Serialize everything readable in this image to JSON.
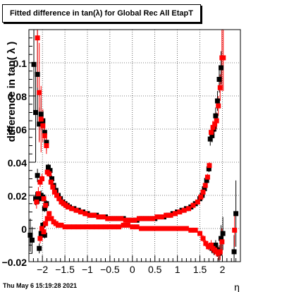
{
  "chart_data": {
    "type": "scatter",
    "title": "Fitted difference in tan(λ) for Global Rec All EtapT",
    "xlabel": "η",
    "ylabel": "difference in tan( λ )",
    "xlim": [
      -2.3,
      2.4
    ],
    "ylim": [
      -0.02,
      0.12
    ],
    "x_ticks": [
      "−2",
      "−1.5",
      "−1",
      "−0.5",
      "0",
      "0.5",
      "1",
      "1.5",
      "2"
    ],
    "x_tick_values": [
      -2,
      -1.5,
      -1,
      -0.5,
      0,
      0.5,
      1,
      1.5,
      2
    ],
    "y_ticks": [
      "−0.02",
      "0",
      "0.02",
      "0.04",
      "0.06",
      "0.08",
      "0.1"
    ],
    "y_tick_values": [
      -0.02,
      0,
      0.02,
      0.04,
      0.06,
      0.08,
      0.1
    ],
    "grid": true,
    "legend": "none",
    "colors": {
      "series_a": "#000000",
      "series_b": "#ff0000"
    },
    "series": [
      {
        "color": "#000000",
        "marker": "square",
        "points": [
          [
            -2.27,
            -0.004,
            0.01
          ],
          [
            -2.23,
            -0.007,
            0.008
          ],
          [
            -2.19,
            0.099,
            0.03
          ],
          [
            -2.15,
            0.07,
            0.03
          ],
          [
            -2.11,
            0.093,
            0.03
          ],
          [
            -2.07,
            0.063,
            0.01
          ],
          [
            -2.03,
            0.069,
            0.01
          ],
          [
            -1.99,
            0.065,
            0.006
          ],
          [
            -1.95,
            0.058,
            0.006
          ],
          [
            -1.91,
            0.052,
            0.005
          ],
          [
            -2.15,
            0.018,
            0.004
          ],
          [
            -2.11,
            0.032,
            0.004
          ],
          [
            -2.07,
            0.018,
            0.003
          ],
          [
            -2.03,
            0.02,
            0.003
          ],
          [
            -1.99,
            0.019,
            0.002
          ],
          [
            -1.95,
            0.012,
            0.002
          ],
          [
            -1.91,
            0.015,
            0.002
          ],
          [
            -1.87,
            0.037,
            0.002
          ],
          [
            -1.83,
            0.035,
            0.002
          ],
          [
            -1.79,
            0.03,
            0.002
          ],
          [
            -1.75,
            0.026,
            0.001
          ],
          [
            -1.7,
            0.023,
            0.001
          ],
          [
            -1.65,
            0.02,
            0.001
          ],
          [
            -1.6,
            0.018,
            0.001
          ],
          [
            -1.55,
            0.016,
            0.001
          ],
          [
            -1.5,
            0.015,
            0.001
          ],
          [
            -1.45,
            0.014,
            0.001
          ],
          [
            -1.4,
            0.013,
            0.001
          ],
          [
            -1.3,
            0.012,
            0.001
          ],
          [
            -1.2,
            0.011,
            0.001
          ],
          [
            -1.1,
            0.01,
            0.001
          ],
          [
            -1.0,
            0.009,
            0.001
          ],
          [
            -0.9,
            0.008,
            0.001
          ],
          [
            -0.8,
            0.008,
            0.001
          ],
          [
            -0.7,
            0.007,
            0.001
          ],
          [
            -0.6,
            0.007,
            0.001
          ],
          [
            -0.5,
            0.006,
            0.001
          ],
          [
            -0.4,
            0.006,
            0.001
          ],
          [
            -0.3,
            0.006,
            0.001
          ],
          [
            -0.2,
            0.006,
            0.001
          ],
          [
            -0.1,
            0.005,
            0.001
          ],
          [
            0.0,
            0.005,
            0.001
          ],
          [
            0.1,
            0.005,
            0.001
          ],
          [
            0.2,
            0.006,
            0.001
          ],
          [
            0.3,
            0.006,
            0.001
          ],
          [
            0.4,
            0.006,
            0.001
          ],
          [
            0.5,
            0.006,
            0.001
          ],
          [
            0.6,
            0.007,
            0.001
          ],
          [
            0.7,
            0.007,
            0.001
          ],
          [
            0.8,
            0.008,
            0.001
          ],
          [
            0.9,
            0.009,
            0.001
          ],
          [
            1.0,
            0.01,
            0.001
          ],
          [
            1.1,
            0.011,
            0.001
          ],
          [
            1.2,
            0.012,
            0.001
          ],
          [
            1.3,
            0.013,
            0.001
          ],
          [
            1.4,
            0.015,
            0.001
          ],
          [
            1.5,
            0.018,
            0.001
          ],
          [
            1.55,
            0.02,
            0.001
          ],
          [
            1.6,
            0.024,
            0.001
          ],
          [
            1.65,
            0.029,
            0.002
          ],
          [
            1.7,
            0.036,
            0.002
          ],
          [
            1.73,
            0.054,
            0.004
          ],
          [
            1.77,
            0.056,
            0.004
          ],
          [
            1.81,
            0.06,
            0.004
          ],
          [
            1.85,
            0.068,
            0.005
          ],
          [
            1.89,
            0.077,
            0.006
          ],
          [
            1.93,
            0.09,
            0.008
          ],
          [
            1.97,
            0.097,
            0.01
          ],
          [
            -2.07,
            -0.012,
            0.003
          ],
          [
            -2.03,
            -0.003,
            0.002
          ],
          [
            -1.99,
            0.002,
            0.002
          ],
          [
            -1.95,
            -0.004,
            0.002
          ],
          [
            1.73,
            -0.011,
            0.002
          ],
          [
            1.77,
            -0.012,
            0.003
          ],
          [
            1.81,
            -0.013,
            0.003
          ],
          [
            1.85,
            -0.01,
            0.003
          ],
          [
            1.89,
            -0.013,
            0.004
          ],
          [
            1.93,
            -0.015,
            0.005
          ],
          [
            1.97,
            -0.006,
            0.008
          ],
          [
            2.01,
            -0.003,
            0.01
          ],
          [
            2.26,
            -0.014,
            0.01
          ],
          [
            2.3,
            0.009,
            0.02
          ]
        ]
      },
      {
        "color": "#ff0000",
        "marker": "square",
        "points": [
          [
            -2.11,
            0.115,
            0.03
          ],
          [
            -2.07,
            0.082,
            0.03
          ],
          [
            -2.03,
            0.066,
            0.02
          ],
          [
            -1.99,
            0.062,
            0.01
          ],
          [
            -1.95,
            0.056,
            0.006
          ],
          [
            -1.91,
            0.05,
            0.005
          ],
          [
            -2.13,
            0.016,
            0.004
          ],
          [
            -2.09,
            0.021,
            0.004
          ],
          [
            -2.05,
            0.028,
            0.003
          ],
          [
            -2.01,
            0.03,
            0.003
          ],
          [
            -1.97,
            0.018,
            0.002
          ],
          [
            -1.93,
            0.014,
            0.002
          ],
          [
            -1.89,
            0.034,
            0.002
          ],
          [
            -1.85,
            0.033,
            0.002
          ],
          [
            -1.81,
            0.028,
            0.002
          ],
          [
            -1.77,
            0.025,
            0.001
          ],
          [
            -1.73,
            0.022,
            0.001
          ],
          [
            -1.68,
            0.02,
            0.001
          ],
          [
            -1.63,
            0.018,
            0.001
          ],
          [
            -1.58,
            0.016,
            0.001
          ],
          [
            -1.53,
            0.015,
            0.001
          ],
          [
            -1.48,
            0.014,
            0.001
          ],
          [
            -1.43,
            0.013,
            0.001
          ],
          [
            -1.35,
            0.012,
            0.001
          ],
          [
            -1.25,
            0.011,
            0.001
          ],
          [
            -1.15,
            0.01,
            0.001
          ],
          [
            -1.05,
            0.009,
            0.001
          ],
          [
            -0.95,
            0.008,
            0.001
          ],
          [
            -0.85,
            0.008,
            0.001
          ],
          [
            -0.75,
            0.007,
            0.001
          ],
          [
            -0.65,
            0.007,
            0.001
          ],
          [
            -0.55,
            0.006,
            0.001
          ],
          [
            -0.45,
            0.006,
            0.001
          ],
          [
            -0.35,
            0.006,
            0.001
          ],
          [
            -0.25,
            0.006,
            0.001
          ],
          [
            -0.15,
            0.005,
            0.001
          ],
          [
            -0.05,
            0.005,
            0.001
          ],
          [
            0.05,
            0.005,
            0.001
          ],
          [
            0.15,
            0.006,
            0.001
          ],
          [
            0.25,
            0.006,
            0.001
          ],
          [
            0.35,
            0.006,
            0.001
          ],
          [
            0.45,
            0.006,
            0.001
          ],
          [
            0.55,
            0.007,
            0.001
          ],
          [
            0.65,
            0.007,
            0.001
          ],
          [
            0.75,
            0.008,
            0.001
          ],
          [
            0.85,
            0.008,
            0.001
          ],
          [
            0.95,
            0.009,
            0.001
          ],
          [
            1.05,
            0.01,
            0.001
          ],
          [
            1.15,
            0.011,
            0.001
          ],
          [
            1.25,
            0.012,
            0.001
          ],
          [
            1.35,
            0.014,
            0.001
          ],
          [
            1.45,
            0.016,
            0.001
          ],
          [
            1.52,
            0.019,
            0.001
          ],
          [
            1.57,
            0.022,
            0.001
          ],
          [
            1.62,
            0.026,
            0.001
          ],
          [
            1.67,
            0.031,
            0.002
          ],
          [
            1.71,
            0.038,
            0.002
          ],
          [
            1.75,
            0.058,
            0.004
          ],
          [
            1.79,
            0.061,
            0.004
          ],
          [
            1.83,
            0.063,
            0.005
          ],
          [
            1.87,
            0.065,
            0.005
          ],
          [
            1.91,
            0.074,
            0.006
          ],
          [
            1.95,
            0.085,
            0.008
          ],
          [
            1.99,
            0.103,
            0.02
          ],
          [
            2.02,
            0.103,
            0.02
          ],
          [
            -2.05,
            -0.006,
            0.003
          ],
          [
            -2.01,
            0.0,
            0.002
          ],
          [
            -1.97,
            -0.002,
            0.002
          ],
          [
            -1.93,
            0.003,
            0.002
          ],
          [
            -1.89,
            0.006,
            0.002
          ],
          [
            -1.85,
            0.009,
            0.001
          ],
          [
            -1.8,
            0.006,
            0.001
          ],
          [
            -1.75,
            0.004,
            0.001
          ],
          [
            -1.7,
            0.003,
            0.001
          ],
          [
            -1.65,
            0.002,
            0.001
          ],
          [
            -1.58,
            0.002,
            0.001
          ],
          [
            -1.5,
            0.001,
            0.001
          ],
          [
            -1.4,
            0.001,
            0.001
          ],
          [
            -1.3,
            0.001,
            0.001
          ],
          [
            -1.2,
            0.001,
            0.001
          ],
          [
            -1.1,
            0.001,
            0.001
          ],
          [
            -1.0,
            0.001,
            0.001
          ],
          [
            -0.9,
            0.001,
            0.001
          ],
          [
            -0.8,
            0.001,
            0.001
          ],
          [
            -0.7,
            0.001,
            0.001
          ],
          [
            -0.6,
            0.001,
            0.001
          ],
          [
            -0.5,
            0.001,
            0.001
          ],
          [
            -0.4,
            0.001,
            0.001
          ],
          [
            -0.3,
            0.001,
            0.001
          ],
          [
            -0.2,
            0.002,
            0.001
          ],
          [
            -0.1,
            0.002,
            0.001
          ],
          [
            0.0,
            0.001,
            0.001
          ],
          [
            0.1,
            0.001,
            0.001
          ],
          [
            0.2,
            0.0,
            0.001
          ],
          [
            0.3,
            0.0,
            0.001
          ],
          [
            0.4,
            0.0,
            0.001
          ],
          [
            0.5,
            0.0,
            0.001
          ],
          [
            0.6,
            0.0,
            0.001
          ],
          [
            0.7,
            0.0,
            0.001
          ],
          [
            0.8,
            0.0,
            0.001
          ],
          [
            0.9,
            0.0,
            0.001
          ],
          [
            1.0,
            0.0,
            0.001
          ],
          [
            1.1,
            0.0,
            0.001
          ],
          [
            1.2,
            0.0,
            0.001
          ],
          [
            1.3,
            -0.001,
            0.001
          ],
          [
            1.4,
            -0.001,
            0.001
          ],
          [
            1.5,
            -0.003,
            0.001
          ],
          [
            1.57,
            -0.006,
            0.002
          ],
          [
            1.63,
            -0.009,
            0.002
          ],
          [
            1.69,
            -0.011,
            0.002
          ],
          [
            1.75,
            -0.01,
            0.003
          ],
          [
            1.79,
            -0.012,
            0.003
          ],
          [
            1.83,
            -0.013,
            0.003
          ],
          [
            1.87,
            -0.014,
            0.003
          ],
          [
            1.91,
            -0.015,
            0.004
          ],
          [
            1.95,
            -0.014,
            0.005
          ],
          [
            1.99,
            -0.008,
            0.008
          ],
          [
            2.27,
            -0.001,
            0.01
          ]
        ]
      }
    ],
    "date": "Thu May  6 15:19:28 2021"
  }
}
